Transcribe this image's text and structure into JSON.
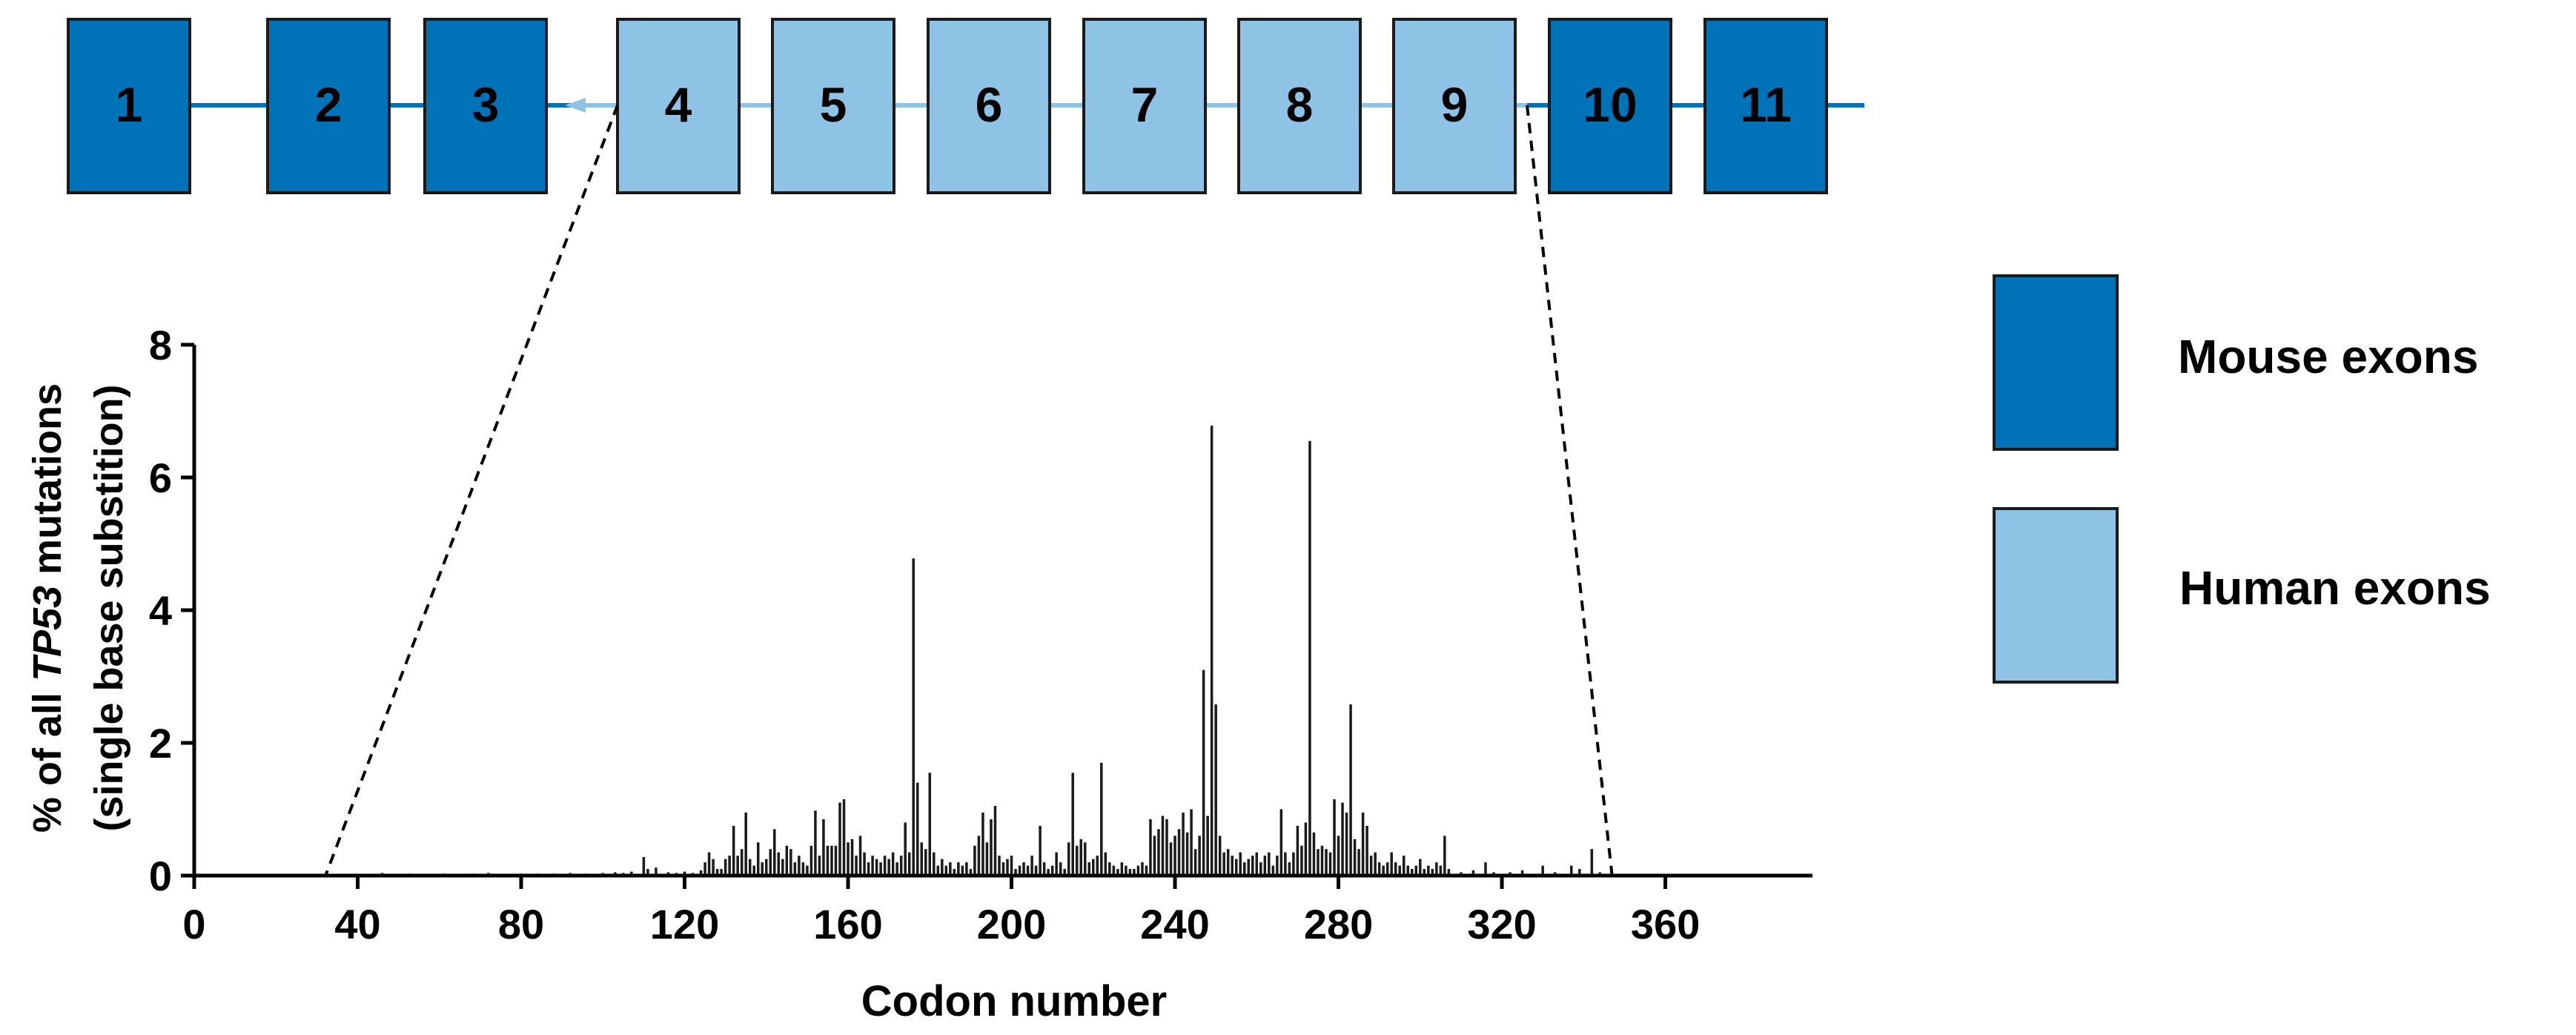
{
  "colors": {
    "mouse_exon": "#0072b8",
    "human_exon": "#8ec3e6",
    "bar": "#1a1a1a",
    "axis": "#000000",
    "dashed_line": "#000000"
  },
  "gene_diagram": {
    "exons": [
      {
        "label": "1",
        "species": "mouse"
      },
      {
        "label": "2",
        "species": "mouse"
      },
      {
        "label": "3",
        "species": "mouse"
      },
      {
        "label": "4",
        "species": "human"
      },
      {
        "label": "5",
        "species": "human"
      },
      {
        "label": "6",
        "species": "human"
      },
      {
        "label": "7",
        "species": "human"
      },
      {
        "label": "8",
        "species": "human"
      },
      {
        "label": "9",
        "species": "human"
      },
      {
        "label": "10",
        "species": "mouse"
      },
      {
        "label": "11",
        "species": "mouse"
      }
    ],
    "zoom_codon_start": 32,
    "zoom_codon_end": 347
  },
  "legend": {
    "mouse": "Mouse exons",
    "human": "Human exons"
  },
  "chart_data": {
    "type": "bar",
    "title": "",
    "xlabel": "Codon number",
    "ylabel_line1_pre": "% of all ",
    "ylabel_line1_italic": "TP53",
    "ylabel_line1_post": " mutations",
    "ylabel_line2": "(single base substition)",
    "xlim": [
      0,
      396
    ],
    "ylim": [
      0,
      8
    ],
    "xticks": [
      "0",
      "40",
      "80",
      "120",
      "160",
      "200",
      "240",
      "280",
      "320",
      "360"
    ],
    "yticks": [
      "0",
      "2",
      "4",
      "6",
      "8"
    ],
    "grid": false,
    "series": [
      {
        "values": [
          [
            46,
            0.04
          ],
          [
            53,
            0.03
          ],
          [
            61,
            0.03
          ],
          [
            68,
            0.03
          ],
          [
            72,
            0.04
          ],
          [
            80,
            0.03
          ],
          [
            84,
            0.03
          ],
          [
            88,
            0.03
          ],
          [
            92,
            0.04
          ],
          [
            96,
            0.03
          ],
          [
            100,
            0.04
          ],
          [
            103,
            0.05
          ],
          [
            105,
            0.04
          ],
          [
            107,
            0.06
          ],
          [
            110,
            0.28
          ],
          [
            111,
            0.1
          ],
          [
            113,
            0.12
          ],
          [
            116,
            0.05
          ],
          [
            118,
            0.04
          ],
          [
            120,
            0.06
          ],
          [
            122,
            0.04
          ],
          [
            124,
            0.08
          ],
          [
            125,
            0.2
          ],
          [
            126,
            0.35
          ],
          [
            127,
            0.25
          ],
          [
            128,
            0.1
          ],
          [
            129,
            0.1
          ],
          [
            130,
            0.25
          ],
          [
            131,
            0.3
          ],
          [
            132,
            0.75
          ],
          [
            133,
            0.3
          ],
          [
            134,
            0.4
          ],
          [
            135,
            0.95
          ],
          [
            136,
            0.25
          ],
          [
            137,
            0.15
          ],
          [
            138,
            0.5
          ],
          [
            139,
            0.2
          ],
          [
            140,
            0.25
          ],
          [
            141,
            0.4
          ],
          [
            142,
            0.7
          ],
          [
            143,
            0.35
          ],
          [
            144,
            0.25
          ],
          [
            145,
            0.45
          ],
          [
            146,
            0.4
          ],
          [
            147,
            0.2
          ],
          [
            148,
            0.3
          ],
          [
            149,
            0.2
          ],
          [
            150,
            0.15
          ],
          [
            151,
            0.45
          ],
          [
            152,
            0.98
          ],
          [
            153,
            0.3
          ],
          [
            154,
            0.85
          ],
          [
            155,
            0.45
          ],
          [
            156,
            0.45
          ],
          [
            157,
            0.45
          ],
          [
            158,
            1.1
          ],
          [
            159,
            1.15
          ],
          [
            160,
            0.5
          ],
          [
            161,
            0.55
          ],
          [
            162,
            0.3
          ],
          [
            163,
            0.6
          ],
          [
            164,
            0.35
          ],
          [
            165,
            0.2
          ],
          [
            166,
            0.3
          ],
          [
            167,
            0.25
          ],
          [
            168,
            0.2
          ],
          [
            169,
            0.3
          ],
          [
            170,
            0.25
          ],
          [
            171,
            0.35
          ],
          [
            172,
            0.2
          ],
          [
            173,
            0.3
          ],
          [
            174,
            0.8
          ],
          [
            175,
            0.35
          ],
          [
            176,
            4.78
          ],
          [
            177,
            1.4
          ],
          [
            178,
            0.5
          ],
          [
            179,
            0.4
          ],
          [
            180,
            1.55
          ],
          [
            181,
            0.35
          ],
          [
            182,
            0.15
          ],
          [
            183,
            0.25
          ],
          [
            184,
            0.15
          ],
          [
            185,
            0.2
          ],
          [
            186,
            0.1
          ],
          [
            187,
            0.2
          ],
          [
            188,
            0.15
          ],
          [
            189,
            0.2
          ],
          [
            190,
            0.1
          ],
          [
            191,
            0.45
          ],
          [
            192,
            0.6
          ],
          [
            193,
            0.95
          ],
          [
            194,
            0.5
          ],
          [
            195,
            0.85
          ],
          [
            196,
            1.05
          ],
          [
            197,
            0.3
          ],
          [
            198,
            0.2
          ],
          [
            199,
            0.25
          ],
          [
            200,
            0.3
          ],
          [
            201,
            0.1
          ],
          [
            202,
            0.15
          ],
          [
            203,
            0.2
          ],
          [
            204,
            0.15
          ],
          [
            205,
            0.3
          ],
          [
            206,
            0.15
          ],
          [
            207,
            0.75
          ],
          [
            208,
            0.2
          ],
          [
            209,
            0.1
          ],
          [
            210,
            0.15
          ],
          [
            211,
            0.35
          ],
          [
            212,
            0.2
          ],
          [
            213,
            0.1
          ],
          [
            214,
            0.5
          ],
          [
            215,
            1.55
          ],
          [
            216,
            0.45
          ],
          [
            217,
            0.55
          ],
          [
            218,
            0.5
          ],
          [
            219,
            0.2
          ],
          [
            220,
            0.25
          ],
          [
            221,
            0.3
          ],
          [
            222,
            1.7
          ],
          [
            223,
            0.35
          ],
          [
            224,
            0.2
          ],
          [
            225,
            0.15
          ],
          [
            226,
            0.1
          ],
          [
            227,
            0.2
          ],
          [
            228,
            0.15
          ],
          [
            229,
            0.1
          ],
          [
            230,
            0.1
          ],
          [
            231,
            0.15
          ],
          [
            232,
            0.2
          ],
          [
            233,
            0.15
          ],
          [
            234,
            0.85
          ],
          [
            235,
            0.6
          ],
          [
            236,
            0.7
          ],
          [
            237,
            0.9
          ],
          [
            238,
            0.85
          ],
          [
            239,
            0.5
          ],
          [
            240,
            0.6
          ],
          [
            241,
            0.7
          ],
          [
            242,
            0.95
          ],
          [
            243,
            0.65
          ],
          [
            244,
            1.0
          ],
          [
            245,
            0.4
          ],
          [
            246,
            0.6
          ],
          [
            247,
            3.1
          ],
          [
            248,
            0.9
          ],
          [
            249,
            6.78
          ],
          [
            250,
            2.58
          ],
          [
            251,
            0.6
          ],
          [
            252,
            0.35
          ],
          [
            253,
            0.4
          ],
          [
            254,
            0.3
          ],
          [
            255,
            0.25
          ],
          [
            256,
            0.35
          ],
          [
            257,
            0.2
          ],
          [
            258,
            0.25
          ],
          [
            259,
            0.3
          ],
          [
            260,
            0.35
          ],
          [
            261,
            0.2
          ],
          [
            262,
            0.3
          ],
          [
            263,
            0.35
          ],
          [
            264,
            0.15
          ],
          [
            265,
            0.3
          ],
          [
            266,
            1.0
          ],
          [
            267,
            0.35
          ],
          [
            268,
            0.2
          ],
          [
            269,
            0.35
          ],
          [
            270,
            0.75
          ],
          [
            271,
            0.45
          ],
          [
            272,
            0.8
          ],
          [
            273,
            6.55
          ],
          [
            274,
            0.65
          ],
          [
            275,
            0.4
          ],
          [
            276,
            0.45
          ],
          [
            277,
            0.4
          ],
          [
            278,
            0.35
          ],
          [
            279,
            1.15
          ],
          [
            280,
            0.6
          ],
          [
            281,
            1.1
          ],
          [
            282,
            0.95
          ],
          [
            283,
            2.58
          ],
          [
            284,
            0.55
          ],
          [
            285,
            0.4
          ],
          [
            286,
            0.95
          ],
          [
            287,
            0.75
          ],
          [
            288,
            0.3
          ],
          [
            289,
            0.35
          ],
          [
            290,
            0.2
          ],
          [
            291,
            0.15
          ],
          [
            292,
            0.2
          ],
          [
            293,
            0.35
          ],
          [
            294,
            0.2
          ],
          [
            295,
            0.15
          ],
          [
            296,
            0.3
          ],
          [
            297,
            0.15
          ],
          [
            298,
            0.1
          ],
          [
            299,
            0.15
          ],
          [
            300,
            0.25
          ],
          [
            301,
            0.1
          ],
          [
            302,
            0.15
          ],
          [
            303,
            0.1
          ],
          [
            304,
            0.2
          ],
          [
            305,
            0.15
          ],
          [
            306,
            0.6
          ],
          [
            307,
            0.1
          ],
          [
            310,
            0.05
          ],
          [
            313,
            0.08
          ],
          [
            316,
            0.2
          ],
          [
            318,
            0.05
          ],
          [
            322,
            0.05
          ],
          [
            325,
            0.08
          ],
          [
            330,
            0.15
          ],
          [
            333,
            0.05
          ],
          [
            337,
            0.15
          ],
          [
            339,
            0.1
          ],
          [
            342,
            0.4
          ],
          [
            344,
            0.05
          ]
        ]
      }
    ]
  }
}
